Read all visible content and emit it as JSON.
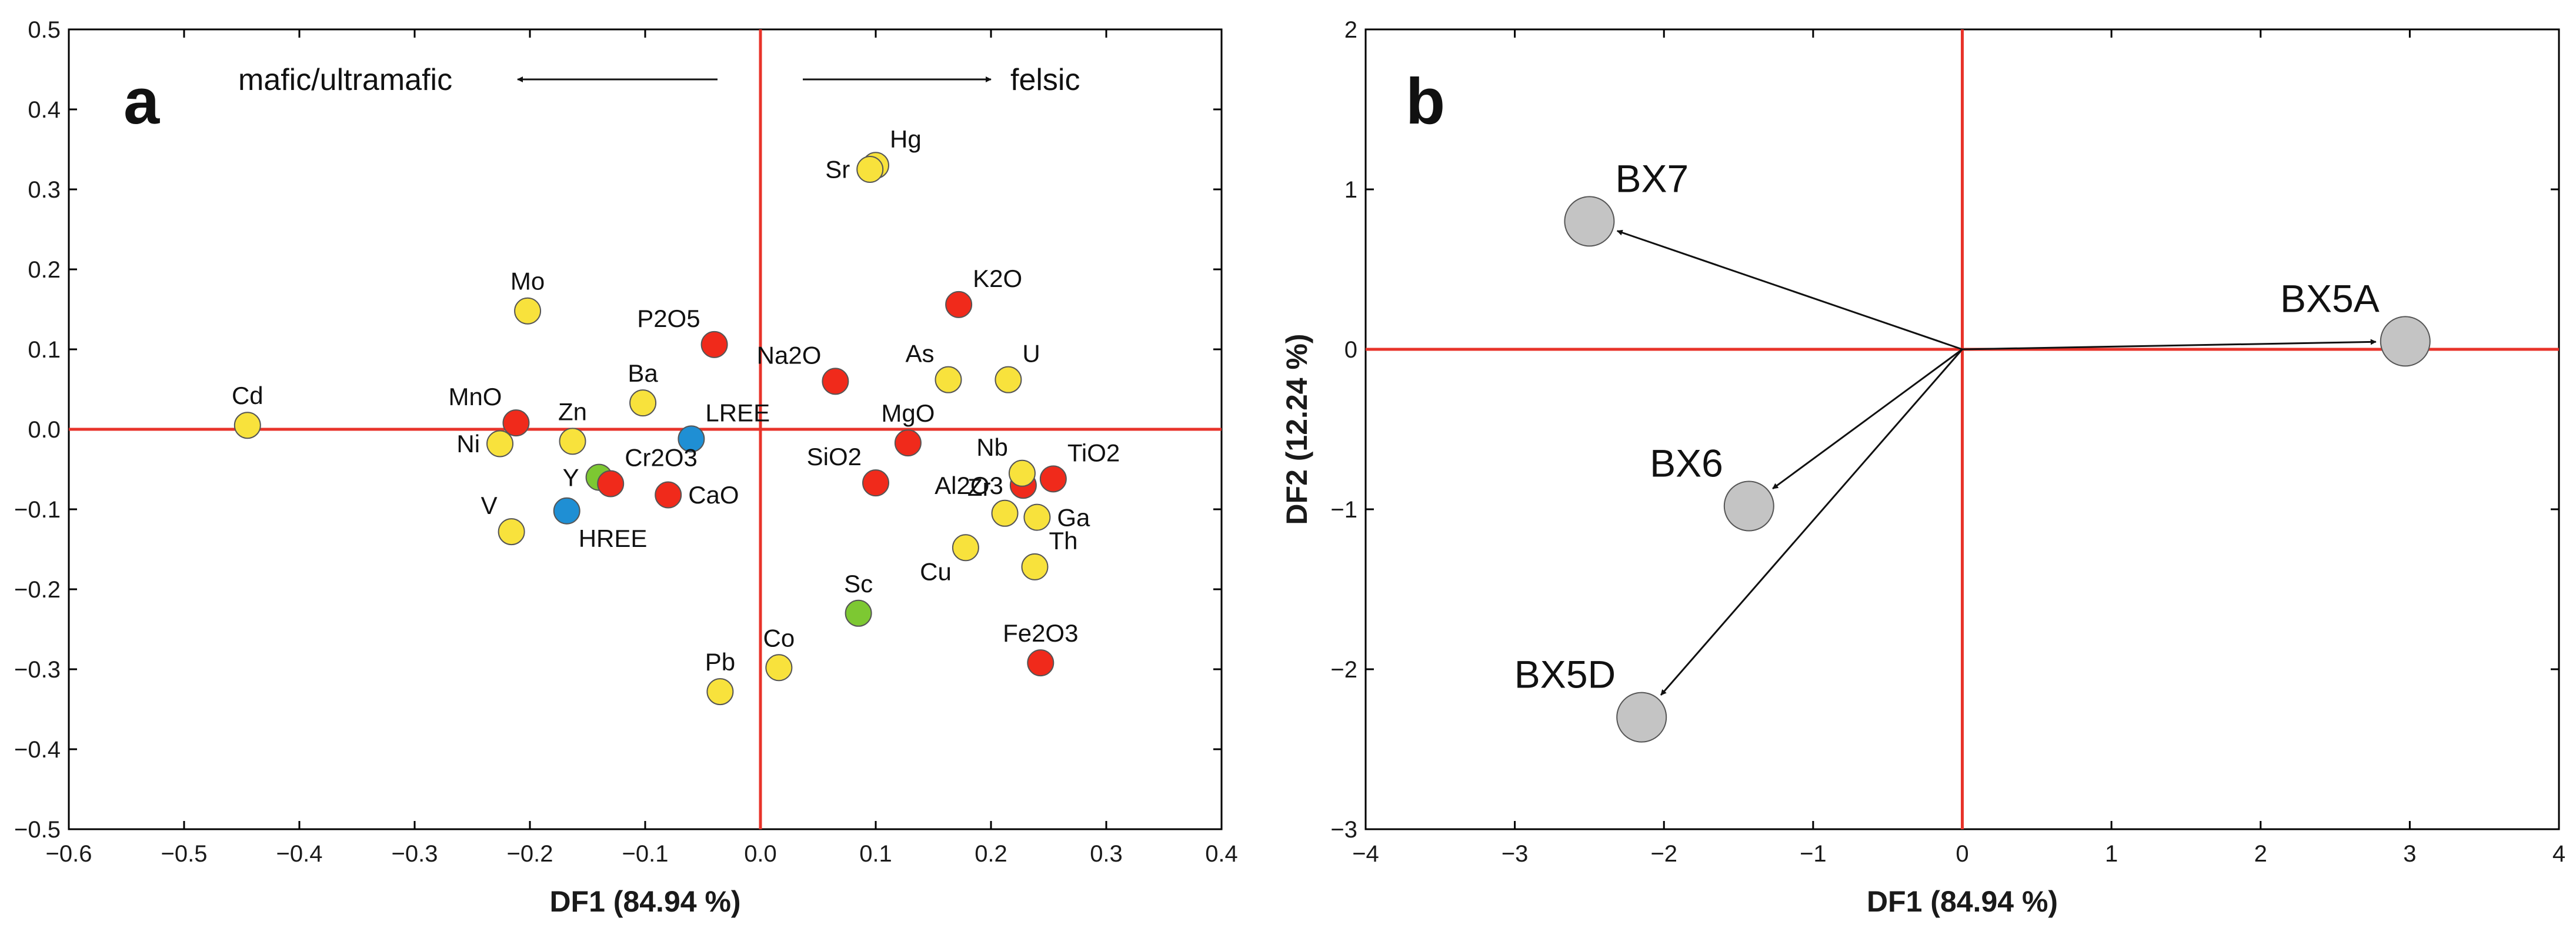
{
  "chart_data": [
    {
      "type": "scatter",
      "panel": "a",
      "xlabel": "DF1 (84.94 %)",
      "ylabel": "",
      "xlim": [
        -0.6,
        0.4
      ],
      "ylim": [
        -0.5,
        0.5
      ],
      "xticks": [
        -0.6,
        -0.5,
        -0.4,
        -0.3,
        -0.2,
        -0.1,
        0.0,
        0.1,
        0.2,
        0.3,
        0.4
      ],
      "yticks": [
        -0.5,
        -0.4,
        -0.3,
        -0.2,
        -0.1,
        0.0,
        0.1,
        0.2,
        0.3,
        0.4,
        0.5
      ],
      "xtick_labels": [
        "−0.6",
        "−0.5",
        "−0.4",
        "−0.3",
        "−0.2",
        "−0.1",
        "0.0",
        "0.1",
        "0.2",
        "0.3",
        "0.4"
      ],
      "ytick_labels": [
        "−0.5",
        "−0.4",
        "−0.3",
        "−0.2",
        "−0.1",
        "0.0",
        "0.1",
        "0.2",
        "0.3",
        "0.4",
        "0.5"
      ],
      "annotations": {
        "left": "mafic/ultramafic",
        "right": "felsic"
      },
      "points": [
        {
          "label": "Cd",
          "x": -0.445,
          "y": 0.005,
          "color": "#f8e23c",
          "label_pos": "above"
        },
        {
          "label": "Mo",
          "x": -0.202,
          "y": 0.148,
          "color": "#f8e23c",
          "label_pos": "above"
        },
        {
          "label": "MnO",
          "x": -0.212,
          "y": 0.008,
          "color": "#f02a1b",
          "label_pos": "above-left"
        },
        {
          "label": "Ni",
          "x": -0.226,
          "y": -0.018,
          "color": "#f8e23c",
          "label_pos": "left"
        },
        {
          "label": "Zn",
          "x": -0.163,
          "y": -0.015,
          "color": "#f8e23c",
          "label_pos": "above"
        },
        {
          "label": "V",
          "x": -0.216,
          "y": -0.128,
          "color": "#f8e23c",
          "label_pos": "above-left"
        },
        {
          "label": "Ba",
          "x": -0.102,
          "y": 0.033,
          "color": "#f8e23c",
          "label_pos": "above"
        },
        {
          "label": "P2O5",
          "x": -0.04,
          "y": 0.106,
          "color": "#f02a1b",
          "label_pos": "above-left"
        },
        {
          "label": "LREE",
          "x": -0.06,
          "y": -0.012,
          "color": "#1f8fd4",
          "label_pos": "above-right"
        },
        {
          "label": "Y",
          "x": -0.14,
          "y": -0.06,
          "color": "#7dc832",
          "label_pos": "left"
        },
        {
          "label": "Cr2O3",
          "x": -0.13,
          "y": -0.068,
          "color": "#f02a1b",
          "label_pos": "above-right"
        },
        {
          "label": "CaO",
          "x": -0.08,
          "y": -0.082,
          "color": "#f02a1b",
          "label_pos": "right"
        },
        {
          "label": "HREE",
          "x": -0.168,
          "y": -0.102,
          "color": "#1f8fd4",
          "label_pos": "below-right"
        },
        {
          "label": "Pb",
          "x": -0.035,
          "y": -0.328,
          "color": "#f8e23c",
          "label_pos": "above"
        },
        {
          "label": "Co",
          "x": 0.016,
          "y": -0.298,
          "color": "#f8e23c",
          "label_pos": "above"
        },
        {
          "label": "Hg",
          "x": 0.1,
          "y": 0.33,
          "color": "#f8e23c",
          "label_pos": "above-right"
        },
        {
          "label": "Sr",
          "x": 0.095,
          "y": 0.325,
          "color": "#f8e23c",
          "label_pos": "left"
        },
        {
          "label": "K2O",
          "x": 0.172,
          "y": 0.156,
          "color": "#f02a1b",
          "label_pos": "above-right"
        },
        {
          "label": "Na2O",
          "x": 0.065,
          "y": 0.06,
          "color": "#f02a1b",
          "label_pos": "above-left"
        },
        {
          "label": "As",
          "x": 0.163,
          "y": 0.062,
          "color": "#f8e23c",
          "label_pos": "above-left"
        },
        {
          "label": "U",
          "x": 0.215,
          "y": 0.062,
          "color": "#f8e23c",
          "label_pos": "above-right"
        },
        {
          "label": "MgO",
          "x": 0.128,
          "y": -0.017,
          "color": "#f02a1b",
          "label_pos": "above"
        },
        {
          "label": "SiO2",
          "x": 0.1,
          "y": -0.067,
          "color": "#f02a1b",
          "label_pos": "above-left"
        },
        {
          "label": "Al2O3",
          "x": 0.228,
          "y": -0.07,
          "color": "#f02a1b",
          "label_pos": "left"
        },
        {
          "label": "Nb",
          "x": 0.227,
          "y": -0.055,
          "color": "#f8e23c",
          "label_pos": "above-left"
        },
        {
          "label": "TiO2",
          "x": 0.254,
          "y": -0.062,
          "color": "#f02a1b",
          "label_pos": "above-right"
        },
        {
          "label": "Zr",
          "x": 0.212,
          "y": -0.105,
          "color": "#f8e23c",
          "label_pos": "above-left"
        },
        {
          "label": "Ga",
          "x": 0.24,
          "y": -0.11,
          "color": "#f8e23c",
          "label_pos": "right"
        },
        {
          "label": "Cu",
          "x": 0.178,
          "y": -0.148,
          "color": "#f8e23c",
          "label_pos": "below-left"
        },
        {
          "label": "Th",
          "x": 0.238,
          "y": -0.172,
          "color": "#f8e23c",
          "label_pos": "above-right"
        },
        {
          "label": "Sc",
          "x": 0.085,
          "y": -0.23,
          "color": "#7dc832",
          "label_pos": "above"
        },
        {
          "label": "Fe2O3",
          "x": 0.243,
          "y": -0.292,
          "color": "#f02a1b",
          "label_pos": "above"
        }
      ]
    },
    {
      "type": "scatter",
      "panel": "b",
      "xlabel": "DF1 (84.94 %)",
      "ylabel": "DF2 (12.24 %)",
      "xlim": [
        -4,
        4
      ],
      "ylim": [
        -3,
        2
      ],
      "xticks": [
        -4,
        -3,
        -2,
        -1,
        0,
        1,
        2,
        3,
        4
      ],
      "yticks": [
        -3,
        -2,
        -1,
        0,
        1,
        2
      ],
      "xtick_labels": [
        "−4",
        "−3",
        "−2",
        "−1",
        "0",
        "1",
        "2",
        "3",
        "4"
      ],
      "ytick_labels": [
        "−3",
        "−2",
        "−1",
        "0",
        "1",
        "2"
      ],
      "points": [
        {
          "label": "BX7",
          "x": -2.5,
          "y": 0.8,
          "color": "#c4c4c4",
          "label_pos": "above-right"
        },
        {
          "label": "BX5A",
          "x": 2.97,
          "y": 0.05,
          "color": "#c4c4c4",
          "label_pos": "above-left"
        },
        {
          "label": "BX6",
          "x": -1.43,
          "y": -0.98,
          "color": "#c4c4c4",
          "label_pos": "above-left"
        },
        {
          "label": "BX5D",
          "x": -2.15,
          "y": -2.3,
          "color": "#c4c4c4",
          "label_pos": "above-left"
        }
      ],
      "vectors_from_origin": [
        "BX7",
        "BX5A",
        "BX6",
        "BX5D"
      ]
    }
  ]
}
